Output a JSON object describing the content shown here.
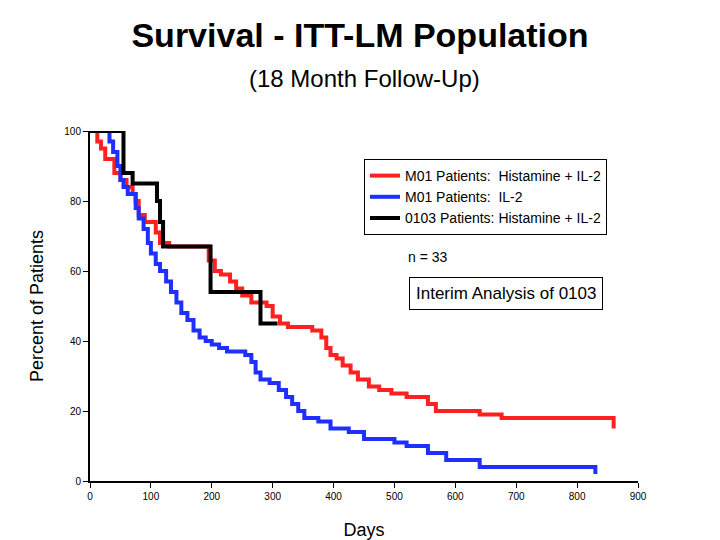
{
  "chart_data": {
    "type": "line",
    "title": "Survival - ITT-LM Population",
    "subtitle": "(18 Month Follow-Up)",
    "x_label": "Days",
    "y_label": "Percent of Patients",
    "xlim": [
      0,
      900
    ],
    "xticks": [
      0,
      100,
      200,
      300,
      400,
      500,
      600,
      700,
      800,
      900
    ],
    "ylim": [
      0,
      100
    ],
    "yticks": [
      0,
      20,
      40,
      60,
      80,
      100
    ],
    "grid": false,
    "legend": "top-right",
    "line_style": "step",
    "series": [
      {
        "name": "M01 Patients:  Histamine + IL-2",
        "color": "#ff2020",
        "x": [
          0,
          12,
          18,
          25,
          40,
          50,
          60,
          70,
          75,
          80,
          90,
          108,
          115,
          130,
          195,
          205,
          215,
          230,
          240,
          250,
          265,
          290,
          300,
          312,
          325,
          365,
          380,
          388,
          395,
          405,
          415,
          428,
          440,
          458,
          475,
          495,
          520,
          555,
          568,
          640,
          676,
          860
        ],
        "values": [
          100,
          97,
          95,
          92,
          88,
          86,
          84,
          82,
          80,
          76,
          74,
          71,
          68,
          67,
          63,
          60,
          59,
          57,
          55,
          53,
          51,
          50,
          47,
          45,
          44,
          43,
          41,
          38,
          36,
          35,
          33,
          31,
          29,
          27,
          26,
          25,
          24,
          22,
          20,
          19,
          18,
          15
        ]
      },
      {
        "name": "M01 Patients:  IL-2",
        "color": "#1f2fff",
        "x": [
          0,
          32,
          38,
          45,
          50,
          55,
          62,
          75,
          80,
          88,
          95,
          100,
          108,
          115,
          125,
          133,
          142,
          150,
          160,
          170,
          180,
          190,
          200,
          212,
          225,
          255,
          265,
          272,
          280,
          295,
          310,
          322,
          332,
          342,
          352,
          375,
          395,
          425,
          450,
          500,
          520,
          555,
          585,
          640,
          830
        ],
        "values": [
          100,
          97,
          94,
          90,
          86,
          84,
          82,
          78,
          75,
          72,
          68,
          65,
          62,
          60,
          57,
          54,
          51,
          48,
          46,
          43,
          41,
          40,
          39,
          38,
          37,
          36,
          34,
          31,
          29,
          28,
          26,
          24,
          22,
          20,
          18,
          17,
          15,
          14,
          12,
          11,
          10,
          8,
          6,
          4,
          2
        ]
      },
      {
        "name": "0103 Patients: Histamine + IL-2",
        "color": "#000000",
        "x": [
          0,
          55,
          70,
          110,
          115,
          120,
          198,
          280,
          308
        ],
        "values": [
          100,
          88,
          85,
          80,
          74,
          67,
          54,
          45,
          45
        ]
      }
    ],
    "annotations": [
      {
        "text": "n = 33"
      },
      {
        "text": "Interim Analysis of 0103"
      }
    ]
  }
}
